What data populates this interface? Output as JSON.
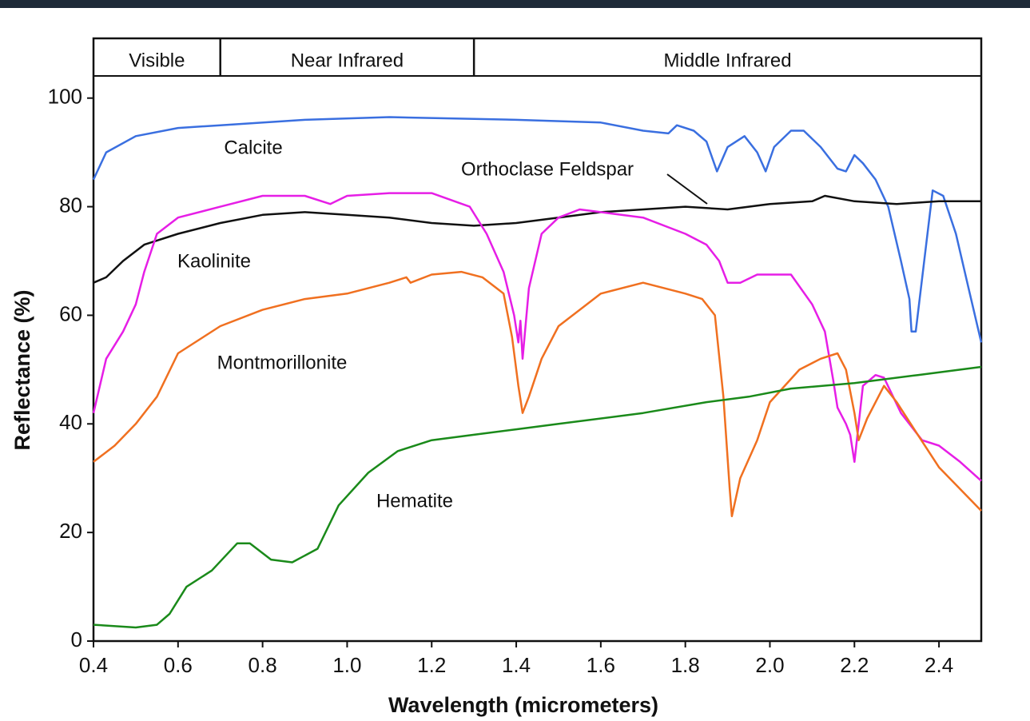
{
  "chart_data": {
    "type": "line",
    "xlabel": "Wavelength (micrometers)",
    "ylabel": "Reflectance (%)",
    "xlim": [
      0.4,
      2.5
    ],
    "ylim": [
      0,
      111
    ],
    "xticks": [
      0.4,
      0.6,
      0.8,
      {
        "value": 1,
        "label": "1.0"
      },
      1.2,
      1.4,
      1.6,
      1.8,
      {
        "value": 2,
        "label": "2.0"
      },
      2.2,
      2.4
    ],
    "yticks": [
      0,
      20,
      40,
      60,
      80,
      100
    ],
    "regions": [
      {
        "label": "Visible",
        "start": 0.4,
        "end": 0.7
      },
      {
        "label": "Near Infrared",
        "start": 0.7,
        "end": 1.3
      },
      {
        "label": "Middle Infrared",
        "start": 1.3,
        "end": 2.5
      }
    ],
    "series": [
      {
        "name": "Calcite",
        "color": "#3a6fe0",
        "x": [
          0.4,
          0.43,
          0.5,
          0.6,
          0.7,
          0.9,
          1.1,
          1.4,
          1.6,
          1.7,
          1.76,
          1.78,
          1.82,
          1.85,
          1.875,
          1.9,
          1.94,
          1.97,
          1.99,
          2.01,
          2.05,
          2.08,
          2.12,
          2.16,
          2.18,
          2.2,
          2.22,
          2.25,
          2.28,
          2.31,
          2.33,
          2.335,
          2.345,
          2.365,
          2.385,
          2.41,
          2.44,
          2.47,
          2.5
        ],
        "values": [
          85,
          90,
          93,
          94.5,
          95,
          96,
          96.5,
          96,
          95.5,
          94,
          93.5,
          95,
          94,
          92,
          86.5,
          91,
          93,
          90,
          86.5,
          91,
          94,
          94,
          91,
          87,
          86.5,
          89.5,
          88,
          85,
          80,
          70,
          63,
          57,
          57,
          70,
          83,
          82,
          75,
          65,
          55
        ]
      },
      {
        "name": "Orthoclase Feldspar",
        "color": "#111111",
        "x": [
          0.4,
          0.43,
          0.47,
          0.52,
          0.6,
          0.7,
          0.8,
          0.9,
          1.0,
          1.1,
          1.2,
          1.3,
          1.4,
          1.5,
          1.6,
          1.7,
          1.8,
          1.9,
          2.0,
          2.1,
          2.13,
          2.2,
          2.3,
          2.4,
          2.5
        ],
        "values": [
          66,
          67,
          70,
          73,
          75,
          77,
          78.5,
          79,
          78.5,
          78,
          77,
          76.5,
          77,
          78,
          79,
          79.5,
          80,
          79.5,
          80.5,
          81,
          82,
          81,
          80.5,
          81,
          81
        ]
      },
      {
        "name": "Kaolinite",
        "color": "#e61ee6",
        "x": [
          0.4,
          0.43,
          0.47,
          0.5,
          0.52,
          0.55,
          0.6,
          0.7,
          0.8,
          0.9,
          0.96,
          1.0,
          1.1,
          1.2,
          1.29,
          1.33,
          1.37,
          1.395,
          1.405,
          1.41,
          1.415,
          1.43,
          1.46,
          1.5,
          1.55,
          1.6,
          1.7,
          1.8,
          1.85,
          1.88,
          1.9,
          1.93,
          1.97,
          2.05,
          2.1,
          2.13,
          2.15,
          2.16,
          2.18,
          2.19,
          2.2,
          2.21,
          2.22,
          2.25,
          2.27,
          2.31,
          2.36,
          2.4,
          2.45,
          2.5
        ],
        "values": [
          42,
          52,
          57,
          62,
          68,
          75,
          78,
          80,
          82,
          82,
          80.5,
          82,
          82.5,
          82.5,
          80,
          75,
          68,
          60,
          55,
          59,
          52,
          65,
          75,
          78,
          79.5,
          79,
          78,
          75,
          73,
          70,
          66,
          66,
          67.5,
          67.5,
          62,
          57,
          48,
          43,
          40,
          38,
          33,
          40,
          47,
          49,
          48.5,
          42,
          37,
          36,
          33,
          29.5
        ]
      },
      {
        "name": "Montmorillonite",
        "color": "#f07020",
        "x": [
          0.4,
          0.45,
          0.5,
          0.55,
          0.6,
          0.7,
          0.8,
          0.9,
          1.0,
          1.1,
          1.14,
          1.15,
          1.2,
          1.27,
          1.32,
          1.37,
          1.39,
          1.405,
          1.415,
          1.43,
          1.46,
          1.5,
          1.6,
          1.7,
          1.8,
          1.84,
          1.87,
          1.89,
          1.905,
          1.91,
          1.93,
          1.97,
          2.0,
          2.07,
          2.12,
          2.16,
          2.18,
          2.2,
          2.21,
          2.23,
          2.27,
          2.3,
          2.35,
          2.4,
          2.45,
          2.5
        ],
        "values": [
          33,
          36,
          40,
          45,
          53,
          58,
          61,
          63,
          64,
          66,
          67,
          66,
          67.5,
          68,
          67,
          64,
          56,
          47,
          42,
          45,
          52,
          58,
          64,
          66,
          64,
          63,
          60,
          45,
          28,
          23,
          30,
          37,
          44,
          50,
          52,
          53,
          50,
          42,
          37,
          41,
          47,
          44,
          38,
          32,
          28,
          24
        ]
      },
      {
        "name": "Hematite",
        "color": "#1a8a1a",
        "x": [
          0.4,
          0.5,
          0.55,
          0.58,
          0.62,
          0.68,
          0.74,
          0.77,
          0.82,
          0.87,
          0.93,
          0.98,
          1.05,
          1.12,
          1.2,
          1.3,
          1.4,
          1.5,
          1.7,
          1.85,
          1.95,
          2.05,
          2.2,
          2.35,
          2.5
        ],
        "values": [
          3,
          2.5,
          3,
          5,
          10,
          13,
          18,
          18,
          15,
          14.5,
          17,
          25,
          31,
          35,
          37,
          38,
          39,
          40,
          42,
          44,
          45,
          46.5,
          47.5,
          49,
          50.5
        ]
      }
    ]
  }
}
